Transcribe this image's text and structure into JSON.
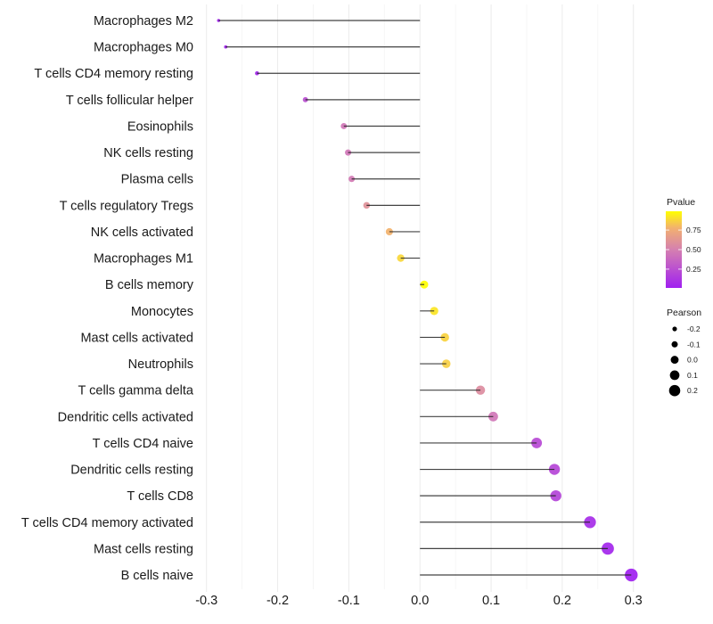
{
  "chart_data": {
    "type": "lollipop",
    "title": "",
    "xlabel": "",
    "ylabel": "",
    "xlim": [
      -0.3,
      0.3
    ],
    "x_ticks": [
      "-0.3",
      "-0.2",
      "-0.1",
      "0.0",
      "0.1",
      "0.2",
      "0.3"
    ],
    "x_tick_values": [
      -0.3,
      -0.2,
      -0.1,
      0.0,
      0.1,
      0.2,
      0.3
    ],
    "grid": true,
    "categories": [
      "Macrophages M2",
      "Macrophages M0",
      "T cells CD4 memory resting",
      "T cells follicular helper",
      "Eosinophils",
      "NK cells resting",
      "Plasma cells",
      "T cells regulatory  Tregs",
      "NK cells activated",
      "Macrophages M1",
      "B cells memory",
      "Monocytes",
      "Mast cells activated",
      "Neutrophils",
      "T cells gamma delta",
      "Dendritic cells activated",
      "T cells CD4 naive",
      "Dendritic cells resting",
      "T cells CD8",
      "T cells CD4 memory activated",
      "Mast cells resting",
      "B cells naive"
    ],
    "pearson": [
      -0.283,
      -0.273,
      -0.229,
      -0.161,
      -0.107,
      -0.101,
      -0.096,
      -0.075,
      -0.043,
      -0.027,
      0.006,
      0.02,
      0.035,
      0.037,
      0.085,
      0.103,
      0.164,
      0.189,
      0.191,
      0.239,
      0.264,
      0.297
    ],
    "pvalue": [
      0.01,
      0.02,
      0.05,
      0.25,
      0.45,
      0.45,
      0.47,
      0.6,
      0.78,
      0.88,
      0.99,
      0.92,
      0.87,
      0.86,
      0.57,
      0.45,
      0.22,
      0.2,
      0.19,
      0.07,
      0.04,
      0.01
    ],
    "legend": {
      "color": {
        "title": "Pvalue",
        "ticks": [
          "0.25",
          "0.50",
          "0.75"
        ],
        "tick_values": [
          0.25,
          0.5,
          0.75
        ],
        "range": [
          0.01,
          0.99
        ],
        "colors": [
          "#A020F0",
          "#D580B0",
          "#F2B070",
          "#FFFF00"
        ],
        "placement": "right"
      },
      "size": {
        "title": "Pearson",
        "labels": [
          "-0.2",
          "-0.1",
          "0.0",
          "0.1",
          "0.2"
        ],
        "values": [
          -0.2,
          -0.1,
          0.0,
          0.1,
          0.2
        ],
        "placement": "right"
      }
    }
  }
}
